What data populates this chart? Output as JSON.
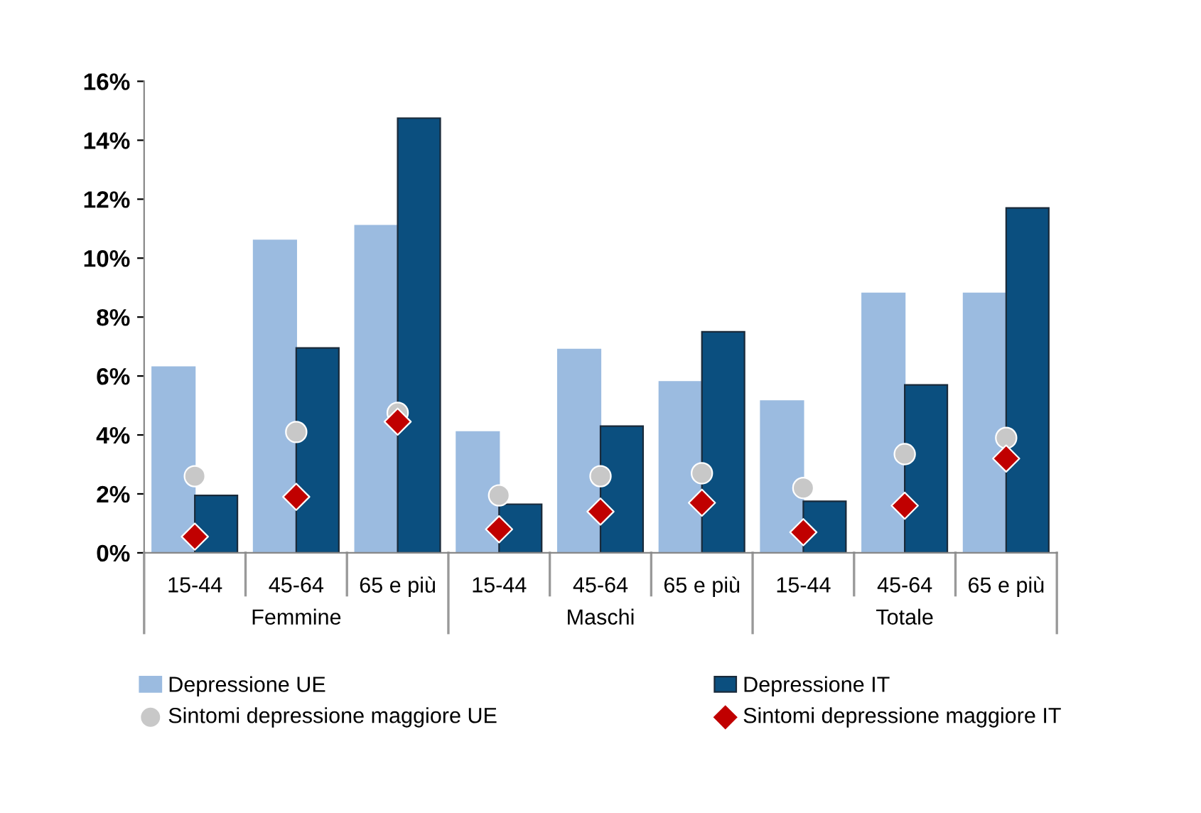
{
  "chart_data": {
    "type": "bar",
    "categories": [
      "15-44",
      "45-64",
      "65 e più",
      "15-44",
      "45-64",
      "65 e più",
      "15-44",
      "45-64",
      "65 e più"
    ],
    "annotations": [
      "Femmine",
      "Maschi",
      "Totale"
    ],
    "series": [
      {
        "name": "Depressione UE",
        "color": "#9bbbe0",
        "values": [
          6.3,
          10.6,
          11.1,
          4.1,
          6.9,
          5.8,
          5.15,
          8.8,
          8.8
        ]
      },
      {
        "name": "Depressione IT",
        "color": "#0b4f7f",
        "values": [
          1.95,
          6.95,
          14.75,
          1.65,
          4.3,
          7.5,
          1.75,
          5.7,
          11.7
        ]
      },
      {
        "name": "Sintomi depressione maggiore UE",
        "type": "scatter",
        "marker": "circle",
        "color": "#c8c8c8",
        "values": [
          2.6,
          4.1,
          4.75,
          1.95,
          2.6,
          2.7,
          2.2,
          3.35,
          3.9
        ]
      },
      {
        "name": "Sintomi depressione maggiore IT",
        "type": "scatter",
        "marker": "diamond",
        "color": "#c00000",
        "values": [
          0.55,
          1.9,
          4.45,
          0.8,
          1.4,
          1.7,
          0.7,
          1.6,
          3.2
        ]
      }
    ],
    "ylim": [
      0,
      16
    ],
    "yticks": [
      {
        "value": 0,
        "label": "0%"
      },
      {
        "value": 2,
        "label": "2%"
      },
      {
        "value": 4,
        "label": "4%"
      },
      {
        "value": 6,
        "label": "6%"
      },
      {
        "value": 8,
        "label": "8%"
      },
      {
        "value": 10,
        "label": "10%"
      },
      {
        "value": 12,
        "label": "12%"
      },
      {
        "value": 14,
        "label": "14%"
      },
      {
        "value": 16,
        "label": "16%"
      }
    ],
    "grid": false,
    "legend": "bottom"
  }
}
